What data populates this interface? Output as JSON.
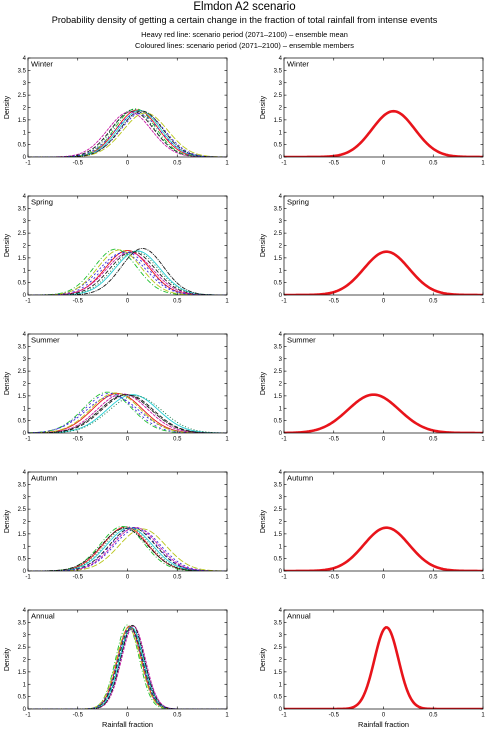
{
  "header": {
    "title": "Elmdon A2 scenario",
    "subtitle": "Probability density of getting a certain change in the fraction of total rainfall from intense events",
    "note1": "Heavy red line: scenario period (2071–2100) – ensemble mean",
    "note2": "Coloured lines: scenario period (2071–2100) – ensemble members"
  },
  "colors": {
    "mean_line": "#e8141b",
    "members": [
      "#e8141b",
      "#1a1a1a",
      "#3b2bd8",
      "#1fbf2e",
      "#23cfd6",
      "#c81aa6",
      "#b8c61b",
      "#0c6e3a",
      "#1a1a1a",
      "#3b2bd8"
    ]
  },
  "chart_data": {
    "type": "line",
    "xlabel": "Rainfall fraction",
    "ylabel": "Density",
    "xlim": [
      -1,
      1
    ],
    "ylim": [
      0,
      4
    ],
    "xticks": [
      "-1",
      "-0.5",
      "0",
      "0.5",
      "1"
    ],
    "yticks": [
      "0",
      "0.5",
      "1",
      "1.5",
      "2",
      "2.5",
      "3",
      "3.5",
      "4"
    ],
    "grid": false,
    "columns": [
      "ensemble members",
      "ensemble mean"
    ],
    "panels": [
      {
        "label": "Winter",
        "mean": {
          "mu": 0.1,
          "peak": 1.85
        },
        "members": [
          {
            "mu": 0.1,
            "peak": 1.9
          },
          {
            "mu": 0.05,
            "peak": 1.85
          },
          {
            "mu": 0.15,
            "peak": 1.8
          },
          {
            "mu": 0.08,
            "peak": 1.95
          },
          {
            "mu": 0.12,
            "peak": 1.88
          },
          {
            "mu": 0.02,
            "peak": 1.82
          },
          {
            "mu": 0.18,
            "peak": 1.78
          },
          {
            "mu": 0.06,
            "peak": 1.92
          },
          {
            "mu": 0.14,
            "peak": 1.86
          },
          {
            "mu": 0.1,
            "peak": 1.75
          }
        ]
      },
      {
        "label": "Spring",
        "mean": {
          "mu": 0.03,
          "peak": 1.75
        },
        "members": [
          {
            "mu": 0.0,
            "peak": 1.8
          },
          {
            "mu": 0.05,
            "peak": 1.75
          },
          {
            "mu": -0.05,
            "peak": 1.7
          },
          {
            "mu": -0.12,
            "peak": 1.85
          },
          {
            "mu": 0.1,
            "peak": 1.78
          },
          {
            "mu": 0.02,
            "peak": 1.72
          },
          {
            "mu": -0.08,
            "peak": 1.82
          },
          {
            "mu": 0.08,
            "peak": 1.76
          },
          {
            "mu": 0.15,
            "peak": 1.88
          },
          {
            "mu": -0.02,
            "peak": 1.74
          }
        ]
      },
      {
        "label": "Summer",
        "mean": {
          "mu": -0.1,
          "peak": 1.55
        },
        "members": [
          {
            "mu": -0.1,
            "peak": 1.6
          },
          {
            "mu": 0.0,
            "peak": 1.55
          },
          {
            "mu": -0.15,
            "peak": 1.5
          },
          {
            "mu": -0.2,
            "peak": 1.65
          },
          {
            "mu": 0.05,
            "peak": 1.55
          },
          {
            "mu": -0.05,
            "peak": 1.58
          },
          {
            "mu": -0.12,
            "peak": 1.62
          },
          {
            "mu": 0.08,
            "peak": 1.5
          },
          {
            "mu": -0.02,
            "peak": 1.55
          },
          {
            "mu": -0.18,
            "peak": 1.6
          }
        ]
      },
      {
        "label": "Autumn",
        "mean": {
          "mu": 0.03,
          "peak": 1.75
        },
        "members": [
          {
            "mu": -0.02,
            "peak": 1.78
          },
          {
            "mu": 0.05,
            "peak": 1.75
          },
          {
            "mu": 0.1,
            "peak": 1.72
          },
          {
            "mu": -0.05,
            "peak": 1.8
          },
          {
            "mu": 0.02,
            "peak": 1.74
          },
          {
            "mu": 0.08,
            "peak": 1.76
          },
          {
            "mu": 0.15,
            "peak": 1.7
          },
          {
            "mu": 0.0,
            "peak": 1.78
          },
          {
            "mu": -0.03,
            "peak": 1.72
          },
          {
            "mu": 0.06,
            "peak": 1.76
          }
        ]
      },
      {
        "label": "Annual",
        "mean": {
          "mu": 0.03,
          "peak": 3.3
        },
        "members": [
          {
            "mu": 0.02,
            "peak": 3.35
          },
          {
            "mu": 0.03,
            "peak": 3.3
          },
          {
            "mu": 0.05,
            "peak": 3.25
          },
          {
            "mu": 0.0,
            "peak": 3.4
          },
          {
            "mu": 0.04,
            "peak": 3.3
          },
          {
            "mu": 0.06,
            "peak": 3.35
          },
          {
            "mu": 0.01,
            "peak": 3.28
          },
          {
            "mu": 0.03,
            "peak": 3.32
          },
          {
            "mu": 0.05,
            "peak": 3.38
          },
          {
            "mu": 0.02,
            "peak": 3.26
          }
        ]
      }
    ]
  }
}
